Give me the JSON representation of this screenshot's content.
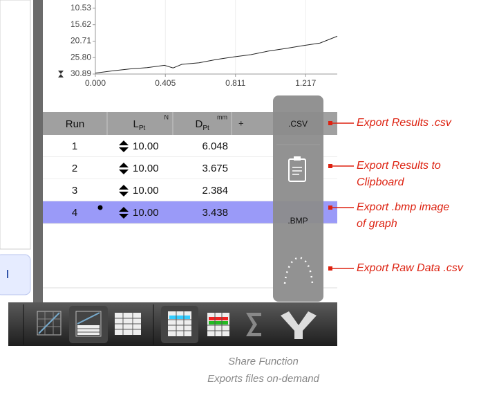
{
  "graph": {
    "type": "line",
    "x": [
      0,
      0.1,
      0.2,
      0.3,
      0.4,
      0.45,
      0.5,
      0.6,
      0.7,
      0.8,
      0.9,
      1.0,
      1.1,
      1.2,
      1.3,
      1.4
    ],
    "values": [
      30.6,
      29.9,
      29.3,
      28.9,
      28.2,
      29.0,
      27.9,
      27.4,
      26.4,
      25.6,
      24.9,
      23.8,
      23.0,
      22.1,
      21.3,
      19.2
    ],
    "color": "#222222",
    "xlim": [
      0,
      1.4
    ],
    "ylim": [
      30.89,
      7.98
    ],
    "xticks": [
      {
        "value": 0,
        "label": "0.000"
      },
      0.405,
      0.811,
      1.217
    ],
    "yticks": [
      10.53,
      15.62,
      20.71,
      {
        "value": 25.8,
        "label": "25.80"
      },
      30.89
    ],
    "grid": "x"
  },
  "table": {
    "headers": [
      {
        "main": "Run"
      },
      {
        "main": "L",
        "sub": "Pt",
        "unit": "N"
      },
      {
        "main": "D",
        "sub": "Pt",
        "unit": "mm"
      },
      {
        "main": "+"
      }
    ],
    "rows": [
      [
        "1",
        "10.00",
        "6.048"
      ],
      [
        "2",
        "10.00",
        "3.675"
      ],
      [
        "3",
        "10.00",
        "2.384"
      ],
      [
        "4",
        "10.00",
        "3.438"
      ]
    ]
  },
  "export_panel": {
    "csv": ".CSV",
    "bmp": ".BMP"
  },
  "annotations": [
    [
      "Export Results .csv"
    ],
    [
      "Export Results to",
      "Clipboard"
    ],
    [
      "Export .bmp image",
      "of graph"
    ],
    [
      "Export Raw Data .csv"
    ]
  ],
  "caption": [
    "Share Function",
    "Exports files on-demand"
  ]
}
